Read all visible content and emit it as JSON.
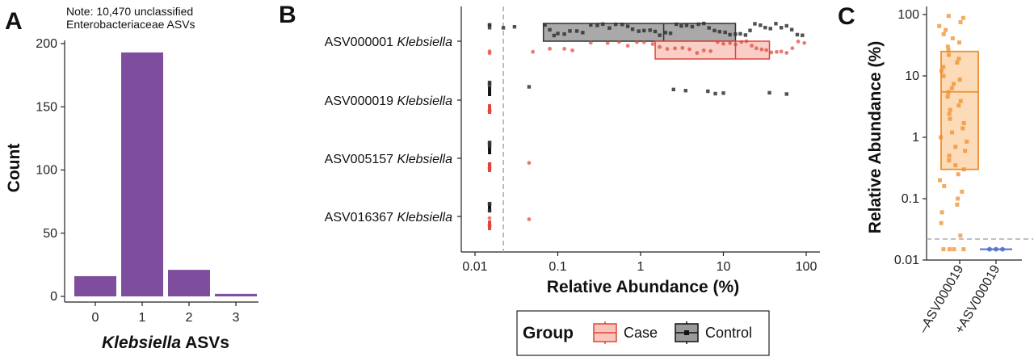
{
  "panels": {
    "a": {
      "letter": "A",
      "note_line1": "Note: 10,470 unclassified",
      "note_line2": "Enterobacteriaceae ASVs",
      "chart_data": {
        "type": "bar",
        "categories": [
          "0",
          "1",
          "2",
          "3"
        ],
        "values": [
          16,
          193,
          21,
          2
        ],
        "ylabel": "Count",
        "xlabel_italic": "Klebsiella",
        "xlabel_rest": " ASVs",
        "ylim": [
          0,
          200
        ],
        "yticks": [
          0,
          50,
          100,
          150,
          200
        ],
        "bar_color": "#7f4d9d"
      }
    },
    "b": {
      "letter": "B",
      "chart_data": {
        "type": "scatter",
        "x_scale": "log",
        "xlim": [
          0.01,
          100
        ],
        "xticks": [
          0.01,
          0.1,
          1,
          10,
          100
        ],
        "xtick_labels": [
          "0.01",
          "0.1",
          "1",
          "10",
          "100"
        ],
        "xlabel": "Relative Abundance (%)",
        "detection_limit": 0.022,
        "colors": {
          "case": "#e0453a",
          "control": "#333333"
        },
        "groups": [
          {
            "asv": "ASV000001",
            "taxon": "Klebsiella",
            "control": {
              "box": {
                "q1": 0.067,
                "median": 1.9,
                "q3": 14
              },
              "points": [
                0.015,
                0.015,
                0.015,
                0.022,
                0.03,
                0.07,
                0.08,
                0.09,
                0.1,
                0.12,
                0.14,
                0.17,
                0.2,
                0.25,
                0.3,
                0.35,
                0.42,
                0.5,
                0.6,
                0.7,
                0.8,
                0.95,
                1.1,
                1.3,
                1.5,
                1.7,
                2,
                2.3,
                2.7,
                3.1,
                3.6,
                4.2,
                5,
                5.8,
                6.7,
                7.8,
                9,
                10.5,
                12,
                14,
                16,
                18.5,
                21,
                24,
                28,
                32,
                37,
                43,
                50,
                58,
                67,
                78,
                90
              ]
            },
            "case": {
              "box": {
                "q1": 1.5,
                "median": 14,
                "q3": 36
              },
              "points": [
                0.015,
                0.015,
                0.05,
                0.08,
                0.12,
                0.15,
                0.25,
                0.4,
                0.55,
                0.7,
                0.9,
                1.1,
                1.4,
                1.7,
                2.1,
                2.6,
                3.2,
                3.9,
                4.8,
                5.8,
                7,
                8.5,
                10,
                12,
                14,
                16.5,
                19,
                22,
                25,
                29,
                33,
                38,
                44,
                50,
                58,
                68,
                80,
                95
              ]
            }
          },
          {
            "asv": "ASV000019",
            "taxon": "Klebsiella",
            "control": {
              "box": null,
              "points": [
                0.015,
                0.015,
                0.015,
                0.045,
                2.5,
                3.5,
                6.5,
                8,
                10,
                36,
                58
              ]
            },
            "case": {
              "box": null,
              "points": [
                0.015,
                0.015,
                0.015
              ]
            }
          },
          {
            "asv": "ASV005157",
            "taxon": "Klebsiella",
            "control": {
              "box": null,
              "points": [
                0.015,
                0.015,
                0.015
              ]
            },
            "case": {
              "box": null,
              "points": [
                0.015,
                0.015,
                0.015,
                0.045
              ]
            }
          },
          {
            "asv": "ASV016367",
            "taxon": "Klebsiella",
            "control": {
              "box": null,
              "points": [
                0.015,
                0.015,
                0.015
              ]
            },
            "case": {
              "box": null,
              "points": [
                0.015,
                0.015,
                0.015,
                0.045
              ]
            }
          }
        ],
        "legend": {
          "title": "Group",
          "items": [
            {
              "label": "Case",
              "key": "case"
            },
            {
              "label": "Control",
              "key": "control"
            }
          ]
        }
      }
    },
    "c": {
      "letter": "C",
      "chart_data": {
        "type": "scatter",
        "y_scale": "log",
        "ylim": [
          0.01,
          100
        ],
        "yticks": [
          0.01,
          0.1,
          1,
          10,
          100
        ],
        "ytick_labels": [
          "0.01",
          "0.1",
          "1",
          "10",
          "100"
        ],
        "ylabel": "Relative Abundance (%)",
        "detection_limit": 0.022,
        "categories": [
          "–ASV000019",
          "+ASV000019"
        ],
        "groups": [
          {
            "name": "–ASV000019",
            "color": "#f28e2b",
            "box": {
              "q1": 0.3,
              "median": 5.5,
              "q3": 25
            },
            "points": [
              0.015,
              0.015,
              0.015,
              0.015,
              0.025,
              0.04,
              0.06,
              0.08,
              0.1,
              0.13,
              0.16,
              0.2,
              0.25,
              0.3,
              0.35,
              0.42,
              0.5,
              0.6,
              0.7,
              0.85,
              1,
              1.2,
              1.4,
              1.7,
              2,
              2.4,
              2.8,
              3.3,
              3.9,
              4.6,
              5.4,
              6.3,
              7.4,
              8.7,
              10,
              12,
              14,
              16.5,
              19,
              22,
              26,
              30,
              35,
              41,
              48,
              56,
              65,
              75,
              88,
              95
            ]
          },
          {
            "name": "+ASV000019",
            "color": "#4a6fc9",
            "box": {
              "q1": 0.015,
              "median": 0.015,
              "q3": 0.015
            },
            "points": [
              0.015,
              0.015,
              0.015
            ]
          }
        ]
      }
    }
  }
}
